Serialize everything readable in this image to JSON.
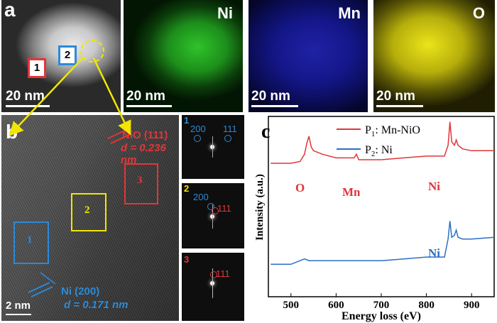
{
  "panel_a": {
    "label": "a",
    "scale_bar": "20 nm",
    "box1": "1",
    "box2": "2",
    "maps": [
      {
        "element": "Ni",
        "color": "#22c21f"
      },
      {
        "element": "Mn",
        "color": "#2a2fd8"
      },
      {
        "element": "O",
        "color": "#e6df14"
      }
    ]
  },
  "panel_b": {
    "label": "b",
    "scale_bar": "2 nm",
    "region1": "1",
    "region2": "2",
    "region3": "3",
    "nio_plane": "NiO (111)",
    "nio_d": "d = 0.236 nm",
    "ni_plane": "Ni (200)",
    "ni_d": "d = 0.171 nm",
    "fft": [
      {
        "number": "1",
        "labels": [
          "200",
          "111"
        ]
      },
      {
        "number": "2",
        "labels": [
          "200",
          "111"
        ]
      },
      {
        "number": "3",
        "labels": [
          "111"
        ]
      }
    ]
  },
  "panel_c": {
    "label": "c",
    "colors": {
      "p1": "#e0363a",
      "p2": "#2b6fc4"
    },
    "chart_data": {
      "type": "line",
      "xlabel": "Energy loss (eV)",
      "ylabel": "Intensity (a.u.)",
      "xlim": [
        450,
        950
      ],
      "x_ticks": [
        500,
        600,
        700,
        800,
        900
      ],
      "legend": "top-right",
      "series": [
        {
          "name": "P1: Mn-NiO",
          "x": [
            455,
            500,
            520,
            530,
            535,
            540,
            545,
            550,
            560,
            570,
            600,
            640,
            645,
            650,
            700,
            750,
            800,
            840,
            848,
            852,
            856,
            862,
            866,
            870,
            880,
            900,
            950
          ],
          "y": [
            0.74,
            0.74,
            0.75,
            0.79,
            0.85,
            0.89,
            0.83,
            0.81,
            0.8,
            0.79,
            0.77,
            0.77,
            0.79,
            0.76,
            0.76,
            0.77,
            0.78,
            0.78,
            0.84,
            0.97,
            0.86,
            0.84,
            0.87,
            0.84,
            0.82,
            0.81,
            0.81
          ]
        },
        {
          "name": "P2: Ni",
          "x": [
            455,
            500,
            520,
            530,
            540,
            550,
            600,
            650,
            700,
            750,
            800,
            840,
            848,
            852,
            856,
            862,
            866,
            870,
            880,
            900,
            950
          ],
          "y": [
            0.18,
            0.18,
            0.2,
            0.21,
            0.2,
            0.2,
            0.2,
            0.2,
            0.2,
            0.21,
            0.22,
            0.22,
            0.32,
            0.42,
            0.33,
            0.34,
            0.37,
            0.33,
            0.32,
            0.32,
            0.33
          ]
        }
      ],
      "annotations": [
        {
          "text": "O",
          "x": 525
        },
        {
          "text": "Mn",
          "x": 640
        },
        {
          "text": "Ni",
          "x": 852
        },
        {
          "text": "Ni",
          "x": 852
        }
      ],
      "legend_entries": [
        {
          "main": "P",
          "sub": "1",
          "rest": ": Mn-NiO"
        },
        {
          "main": "P",
          "sub": "2",
          "rest": ": Ni"
        }
      ]
    }
  }
}
